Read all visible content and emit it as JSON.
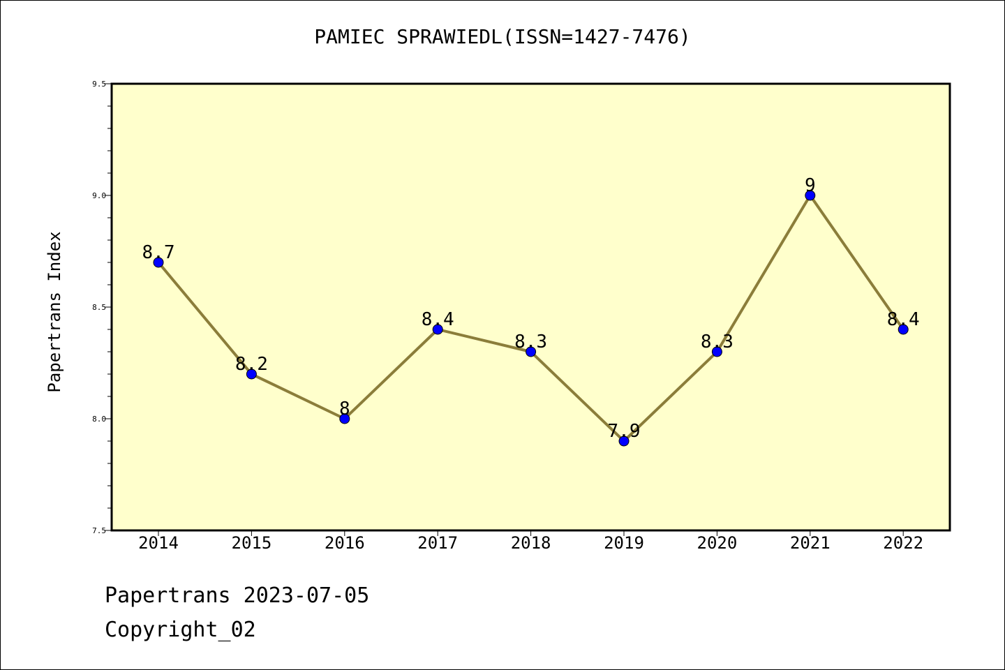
{
  "footer": {
    "date_line": "Papertrans 2023-07-05",
    "copyright": "Copyright_02"
  },
  "chart_data": {
    "type": "line",
    "title": "PAMIEC SPRAWIEDL(ISSN=1427-7476)",
    "xlabel": "",
    "ylabel": "Papertrans Index",
    "categories": [
      "2014",
      "2015",
      "2016",
      "2017",
      "2018",
      "2019",
      "2020",
      "2021",
      "2022"
    ],
    "values": [
      8.7,
      8.2,
      8.0,
      8.4,
      8.3,
      7.9,
      8.3,
      9.0,
      8.4
    ],
    "data_labels": [
      "8.7",
      "8.2",
      "8",
      "8.4",
      "8.3",
      "7.9",
      "8.3",
      "9",
      "8.4"
    ],
    "ylim": [
      7.5,
      9.5
    ],
    "y_ticks": [
      "7.5",
      "8.0",
      "8.5",
      "9.0",
      "9.5"
    ],
    "grid": false,
    "colors": {
      "plot_background": "#ffffcc",
      "line": "#8b7d3a",
      "marker": "#0000ff"
    }
  }
}
